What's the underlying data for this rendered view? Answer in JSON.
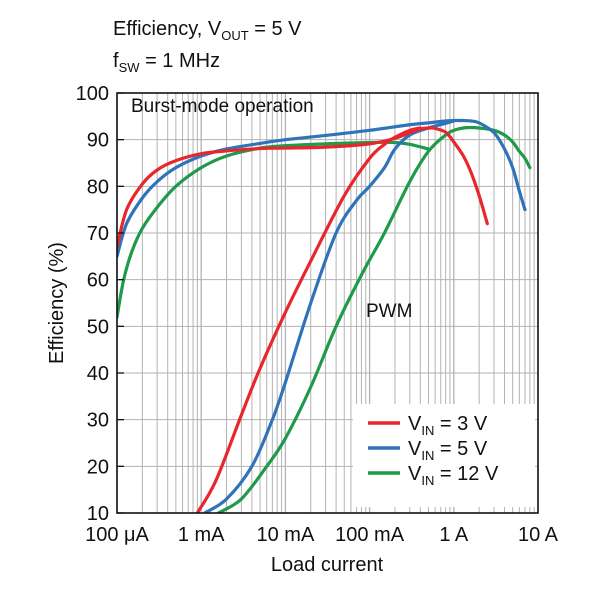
{
  "chart_data": {
    "type": "line",
    "title_parts": {
      "line1_prefix": "Efficiency, V",
      "line1_sub": "OUT",
      "line1_suffix": " = 5 V",
      "line2_prefix": "f",
      "line2_sub": "SW",
      "line2_suffix": " = 1 MHz"
    },
    "xlabel": "Load current",
    "ylabel": "Efficiency (%)",
    "x_scale": "log",
    "x_unit": "A",
    "xlim": [
      0.0001,
      10
    ],
    "ylim": [
      10,
      100
    ],
    "x_ticks": [
      {
        "value": 0.0001,
        "label": "100 μA"
      },
      {
        "value": 0.001,
        "label": "1 mA"
      },
      {
        "value": 0.01,
        "label": "10 mA"
      },
      {
        "value": 0.1,
        "label": "100 mA"
      },
      {
        "value": 1,
        "label": "1 A"
      },
      {
        "value": 10,
        "label": "10 A"
      }
    ],
    "y_ticks": [
      10,
      20,
      30,
      40,
      50,
      60,
      70,
      80,
      90,
      100
    ],
    "grid": true,
    "annotations": [
      {
        "text": "Burst-mode operation"
      },
      {
        "text": "PWM"
      }
    ],
    "legend": {
      "placement": "bottom-right",
      "entries": [
        {
          "prefix": "V",
          "sub": "IN",
          "suffix": " = 3 V",
          "color": "#e8262b"
        },
        {
          "prefix": "V",
          "sub": "IN",
          "suffix": " = 5 V",
          "color": "#2f73bb"
        },
        {
          "prefix": "V",
          "sub": "IN",
          "suffix": " = 12 V",
          "color": "#1f9a4a"
        }
      ]
    },
    "series": [
      {
        "name": "VIN = 3 V (burst)",
        "color": "#e8262b",
        "x": [
          0.0001,
          0.00013,
          0.0002,
          0.0003,
          0.0005,
          0.001,
          0.002,
          0.005,
          0.01,
          0.03,
          0.1,
          0.2,
          0.3,
          0.4,
          0.5,
          0.6,
          0.8,
          1.0,
          1.3,
          1.6,
          2.0,
          2.5
        ],
        "y": [
          67,
          75,
          80.5,
          83.5,
          85.5,
          87,
          87.6,
          88.1,
          88.2,
          88.4,
          89.1,
          90.3,
          91.5,
          92.3,
          92.5,
          92.4,
          91.6,
          89.5,
          86.5,
          83,
          78,
          72
        ]
      },
      {
        "name": "VIN = 5 V (burst)",
        "color": "#2f73bb",
        "x": [
          0.0001,
          0.00013,
          0.0002,
          0.0003,
          0.0005,
          0.001,
          0.002,
          0.005,
          0.01,
          0.03,
          0.1,
          0.3,
          0.5,
          0.8,
          1.0,
          1.3,
          1.6,
          2.0,
          3.0,
          4.0,
          5.0,
          6.0,
          7.0
        ],
        "y": [
          65,
          72,
          77.5,
          81,
          84,
          86.5,
          88,
          89.2,
          90,
          90.9,
          92,
          93.2,
          93.6,
          94,
          94.1,
          94.1,
          94.0,
          93.6,
          91.5,
          88,
          84,
          79,
          75
        ]
      },
      {
        "name": "VIN = 12 V (burst)",
        "color": "#1f9a4a",
        "x": [
          0.0001,
          0.00012,
          0.00015,
          0.0002,
          0.0003,
          0.0005,
          0.001,
          0.002,
          0.005,
          0.01,
          0.03,
          0.1,
          0.2,
          0.3,
          0.5
        ],
        "y": [
          52,
          60,
          66,
          71,
          75.5,
          80,
          84,
          86.5,
          88.2,
          88.7,
          89.1,
          89.4,
          89.4,
          89.0,
          88.0
        ]
      },
      {
        "name": "VIN = 3 V (PWM)",
        "color": "#e8262b",
        "x": [
          0.0009,
          0.0015,
          0.003,
          0.005,
          0.01,
          0.02,
          0.05,
          0.1,
          0.15,
          0.2,
          0.3,
          0.4
        ],
        "y": [
          10,
          17,
          31,
          41,
          53,
          64,
          78,
          86,
          89,
          90.5,
          92,
          92.5
        ]
      },
      {
        "name": "VIN = 5 V (PWM)",
        "color": "#2f73bb",
        "x": [
          0.0011,
          0.002,
          0.004,
          0.007,
          0.01,
          0.02,
          0.04,
          0.07,
          0.1,
          0.15,
          0.2,
          0.3,
          0.5,
          0.8,
          1.0
        ],
        "y": [
          10,
          13,
          20,
          30,
          38,
          55,
          70,
          77,
          80,
          84,
          88,
          91,
          92.5,
          93.5,
          94
        ]
      },
      {
        "name": "VIN = 12 V (PWM)",
        "color": "#1f9a4a",
        "x": [
          0.0016,
          0.003,
          0.006,
          0.01,
          0.02,
          0.04,
          0.08,
          0.15,
          0.3,
          0.5,
          0.8,
          1.0,
          1.3,
          1.6,
          2.0,
          3.0,
          4.0,
          5.0,
          6.0,
          7.0,
          8.0
        ],
        "y": [
          10,
          13,
          20,
          26,
          37,
          50,
          61,
          70,
          81,
          87.5,
          91,
          92,
          92.5,
          92.6,
          92.5,
          92,
          91,
          89.5,
          87.5,
          86,
          84
        ]
      }
    ]
  }
}
